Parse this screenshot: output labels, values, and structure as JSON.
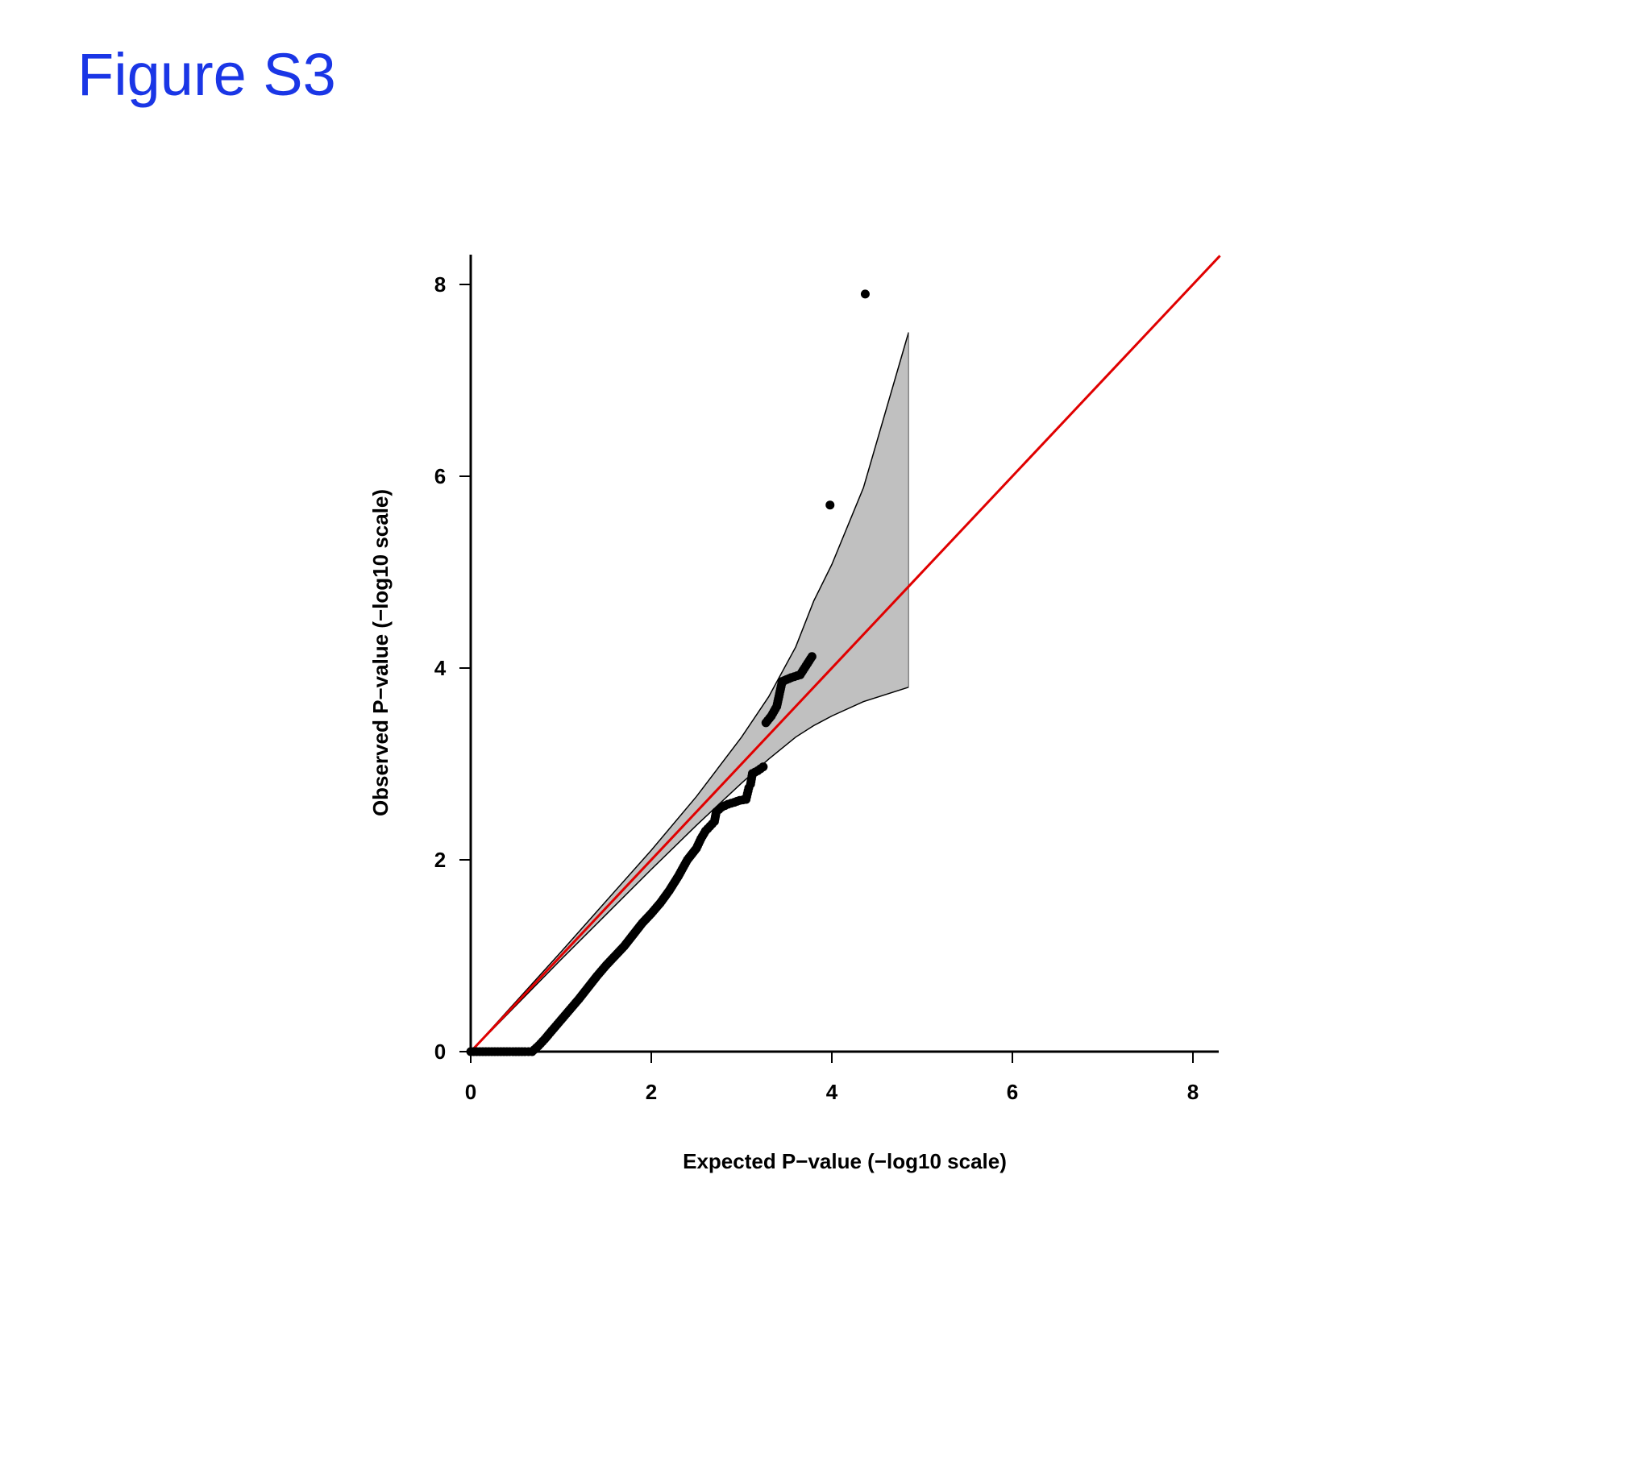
{
  "figure": {
    "title": "Figure S3"
  },
  "colors": {
    "title": "#1a36e6",
    "reference_line": "#e00000",
    "band_fill": "#c0c0c0",
    "points": "#000000"
  },
  "chart_data": {
    "type": "scatter",
    "title": "",
    "xlabel": "Expected P−value (−log10 scale)",
    "ylabel": "Observed P−value (−log10 scale)",
    "xlim": [
      0,
      8.3
    ],
    "ylim": [
      0,
      8.3
    ],
    "x_ticks": [
      0,
      2,
      4,
      6,
      8
    ],
    "y_ticks": [
      0,
      2,
      4,
      6,
      8
    ],
    "x_tick_labels": [
      "0",
      "2",
      "4",
      "6",
      "8"
    ],
    "y_tick_labels": [
      "0",
      "2",
      "4",
      "6",
      "8"
    ],
    "grid": false,
    "legend": "none",
    "reference_line": {
      "from": [
        0,
        0
      ],
      "to": [
        8.3,
        8.3
      ]
    },
    "confidence_band": {
      "x": [
        0,
        0.5,
        1.0,
        1.5,
        2.0,
        2.5,
        3.0,
        3.3,
        3.6,
        3.8,
        4.0,
        4.35,
        4.85
      ],
      "upper": [
        0,
        0.52,
        1.04,
        1.57,
        2.1,
        2.66,
        3.28,
        3.7,
        4.22,
        4.7,
        5.08,
        5.88,
        7.5
      ],
      "lower": [
        0,
        0.48,
        0.96,
        1.43,
        1.9,
        2.36,
        2.8,
        3.05,
        3.28,
        3.4,
        3.5,
        3.65,
        3.8
      ]
    },
    "series": [
      {
        "points": [
          [
            0.0,
            0.0
          ],
          [
            0.1,
            0.0
          ],
          [
            0.2,
            0.0
          ],
          [
            0.3,
            0.0
          ],
          [
            0.4,
            0.0
          ],
          [
            0.5,
            0.0
          ],
          [
            0.6,
            0.0
          ],
          [
            0.68,
            0.0
          ],
          [
            0.75,
            0.06
          ],
          [
            0.82,
            0.13
          ],
          [
            0.9,
            0.22
          ],
          [
            1.0,
            0.33
          ],
          [
            1.1,
            0.44
          ],
          [
            1.2,
            0.55
          ],
          [
            1.3,
            0.67
          ],
          [
            1.4,
            0.79
          ],
          [
            1.5,
            0.9
          ],
          [
            1.6,
            1.0
          ],
          [
            1.7,
            1.1
          ],
          [
            1.8,
            1.22
          ],
          [
            1.9,
            1.34
          ],
          [
            2.0,
            1.44
          ],
          [
            2.1,
            1.55
          ],
          [
            2.2,
            1.68
          ],
          [
            2.3,
            1.83
          ],
          [
            2.4,
            2.0
          ],
          [
            2.5,
            2.12
          ],
          [
            2.55,
            2.22
          ],
          [
            2.6,
            2.3
          ],
          [
            2.65,
            2.35
          ],
          [
            2.7,
            2.4
          ],
          [
            2.72,
            2.5
          ],
          [
            2.78,
            2.55
          ],
          [
            2.85,
            2.58
          ],
          [
            2.92,
            2.6
          ],
          [
            2.98,
            2.62
          ],
          [
            3.05,
            2.63
          ],
          [
            3.08,
            2.75
          ],
          [
            3.1,
            2.79
          ],
          [
            3.12,
            2.9
          ],
          [
            3.18,
            2.93
          ],
          [
            3.24,
            2.97
          ],
          [
            3.27,
            3.43
          ],
          [
            3.33,
            3.5
          ],
          [
            3.39,
            3.6
          ],
          [
            3.45,
            3.86
          ],
          [
            3.55,
            3.9
          ],
          [
            3.65,
            3.93
          ],
          [
            3.78,
            4.12
          ],
          [
            3.98,
            5.7
          ],
          [
            4.37,
            7.9
          ]
        ]
      }
    ]
  }
}
